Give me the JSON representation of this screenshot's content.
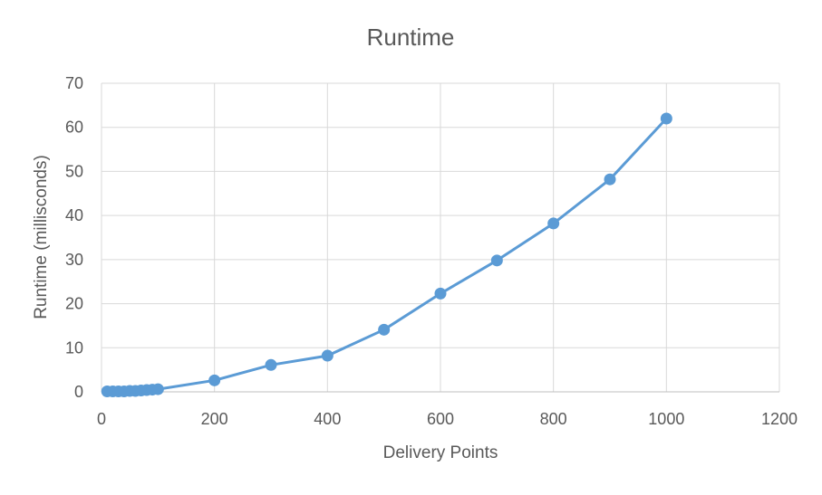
{
  "chart_data": {
    "type": "scatter",
    "title": "Runtime",
    "xlabel": "Delivery Points",
    "ylabel": "Runtime (millisconds)",
    "xlim": [
      0,
      1200
    ],
    "ylim": [
      0,
      70
    ],
    "x_ticks": [
      "0",
      "200",
      "400",
      "600",
      "800",
      "1000",
      "1200"
    ],
    "y_ticks": [
      "0",
      "10",
      "20",
      "30",
      "40",
      "50",
      "60",
      "70"
    ],
    "grid": true,
    "legend": "none",
    "series": [
      {
        "color": "#5b9bd5",
        "points": [
          {
            "x": 10,
            "y": 0.1
          },
          {
            "x": 20,
            "y": 0.1
          },
          {
            "x": 30,
            "y": 0.1
          },
          {
            "x": 40,
            "y": 0.1
          },
          {
            "x": 50,
            "y": 0.2
          },
          {
            "x": 60,
            "y": 0.2
          },
          {
            "x": 70,
            "y": 0.3
          },
          {
            "x": 80,
            "y": 0.4
          },
          {
            "x": 90,
            "y": 0.5
          },
          {
            "x": 100,
            "y": 0.6
          },
          {
            "x": 200,
            "y": 2.6
          },
          {
            "x": 300,
            "y": 6.1
          },
          {
            "x": 400,
            "y": 8.2
          },
          {
            "x": 500,
            "y": 14.1
          },
          {
            "x": 600,
            "y": 22.3
          },
          {
            "x": 700,
            "y": 29.8
          },
          {
            "x": 800,
            "y": 38.2
          },
          {
            "x": 900,
            "y": 48.2
          },
          {
            "x": 1000,
            "y": 62.0
          }
        ]
      }
    ]
  }
}
